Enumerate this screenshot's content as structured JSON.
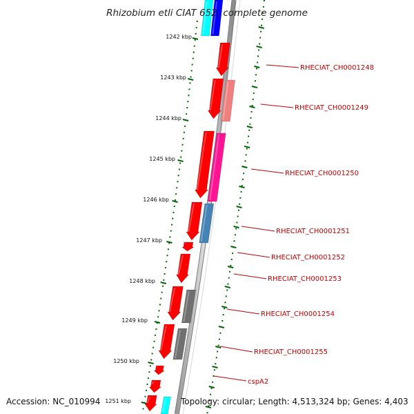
{
  "title": "Rhizobium etli CIAT 652, complete genome",
  "ruler_labels": [
    "1242 kbp",
    "1243 kbp",
    "1244 kbp",
    "1245 kbp",
    "1246 kbp",
    "1247 kbp",
    "1248 kbp",
    "1249 kbp",
    "1250 kbp",
    "1251 kbp"
  ],
  "gene_labels": [
    "RHECIAT_CH0001248",
    "RHECIAT_CH0001249",
    "RHECIAT_CH0001250",
    "RHECIAT_CH0001251",
    "RHECIAT_CH0001252",
    "RHECIAT_CH0001253",
    "RHECIAT_CH0001254",
    "RHECIAT_CH0001255",
    "cspA2"
  ],
  "footer": {
    "accession": "Accession: NC_010994",
    "topology": "Topology: circular; Length: 4,513,324 bp; Genes: 4,403"
  },
  "colors": {
    "cds_red": "#ff0000",
    "light_red": "#f08080",
    "magenta": "#ff1493",
    "steel_blue": "#4682b4",
    "gray": "#707070",
    "cyan": "#00ffff",
    "blue": "#0000ff",
    "ruler_green": "#006400",
    "label_red": "#c00000"
  }
}
